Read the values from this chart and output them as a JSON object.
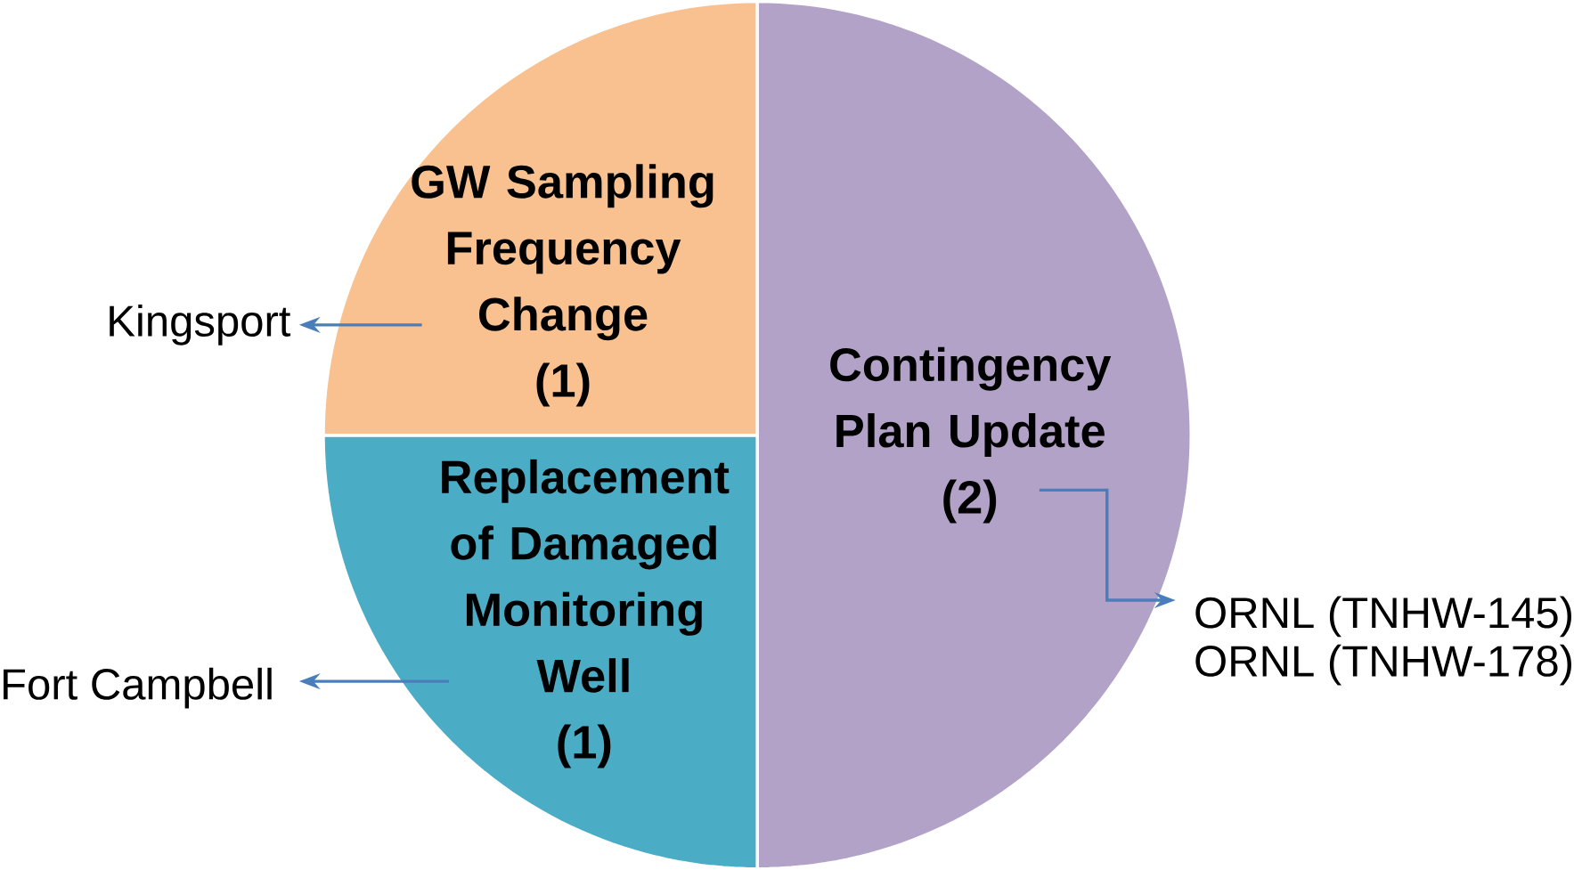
{
  "chart_data": {
    "type": "pie",
    "categories": [
      "Contingency Plan Update",
      "Replacement of Damaged Monitoring Well",
      "GW Sampling Frequency Change"
    ],
    "values": [
      2,
      1,
      1
    ],
    "value_labels": [
      "(2)",
      "(1)",
      "(1)"
    ],
    "colors": [
      "#b2a2c7",
      "#4bacc6",
      "#f9c090"
    ],
    "annotations": [
      "ORNL (TNHW-145)",
      "ORNL (TNHW-178)",
      "Fort Campbell",
      "Kingsport"
    ]
  }
}
